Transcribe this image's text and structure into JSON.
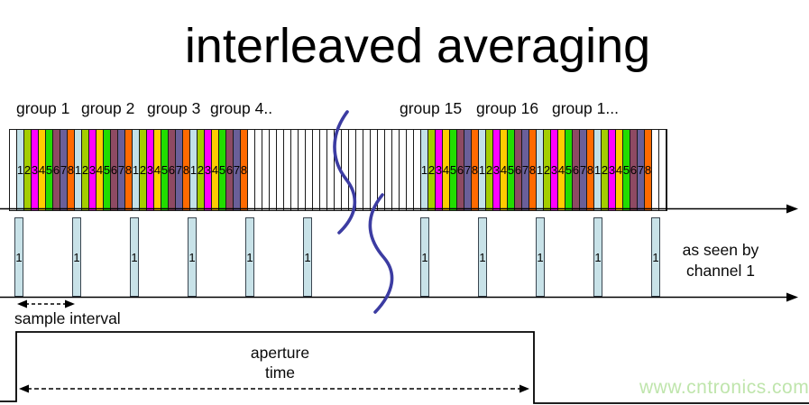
{
  "title": "interleaved averaging",
  "group_labels": {
    "left": [
      "group 1",
      "group 2",
      "group 3",
      "group 4.."
    ],
    "right": [
      "group 15",
      "group 16",
      "group 1..."
    ]
  },
  "strip": {
    "slot_numbers": [
      "1",
      "2",
      "3",
      "4",
      "5",
      "6",
      "7",
      "8"
    ],
    "pattern": [
      {
        "kind": "blank",
        "count": 1
      },
      {
        "kind": "numbered",
        "groups": 4
      },
      {
        "kind": "blank",
        "count": 24
      },
      {
        "kind": "numbered",
        "groups": 4
      },
      {
        "kind": "blank",
        "count": 2
      }
    ]
  },
  "channel_row": {
    "bar_label": "1",
    "bar_count": 11,
    "positions": [
      16,
      80,
      144,
      208,
      272,
      336,
      466,
      530,
      594,
      658,
      722
    ],
    "caption_line1": "as seen by",
    "caption_line2": "channel 1"
  },
  "labels": {
    "sample_interval": "sample interval",
    "aperture_line1": "aperture",
    "aperture_line2": "time"
  },
  "watermark": "www.cntronics.com",
  "colors": {
    "slot_colors": [
      "#c2e1e8",
      "#a4cd00",
      "#ff00ff",
      "#ffcc00",
      "#22dd00",
      "#8e4a63",
      "#6a5f99",
      "#ff6a00"
    ],
    "sample_bar": "#c8e2e8",
    "break_squiggle": "#3c3ca2",
    "axis": "#000000",
    "watermark": "#bfe5ac"
  }
}
